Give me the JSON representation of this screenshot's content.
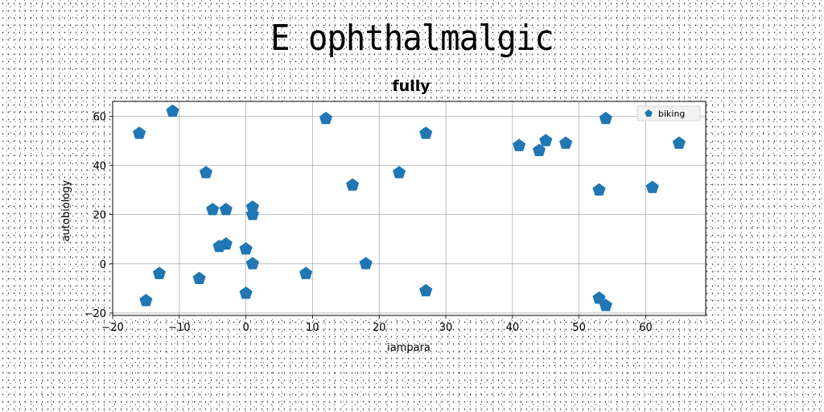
{
  "title": "E ophthalmalgic",
  "chart_data": {
    "type": "scatter",
    "title": "fully",
    "xlabel": "iampara",
    "ylabel": "autobiology",
    "xlim": [
      -20,
      69
    ],
    "ylim": [
      -21,
      66
    ],
    "xticks": [
      -20,
      -10,
      0,
      10,
      20,
      30,
      40,
      50,
      60
    ],
    "yticks": [
      -20,
      0,
      20,
      40,
      60
    ],
    "grid": true,
    "legend_position": "top-right",
    "series": [
      {
        "name": "biking",
        "color": "#1f77b4",
        "marker": "pentagon",
        "points": [
          [
            -16,
            53
          ],
          [
            -11,
            62
          ],
          [
            -13,
            -4
          ],
          [
            -15,
            -15
          ],
          [
            -7,
            -6
          ],
          [
            -6,
            37
          ],
          [
            -5,
            22
          ],
          [
            -3,
            22
          ],
          [
            -4,
            7
          ],
          [
            -3,
            8
          ],
          [
            0,
            6
          ],
          [
            1,
            23
          ],
          [
            1,
            20
          ],
          [
            1,
            0
          ],
          [
            0,
            -12
          ],
          [
            9,
            -4
          ],
          [
            12,
            59
          ],
          [
            16,
            32
          ],
          [
            18,
            0
          ],
          [
            23,
            37
          ],
          [
            27,
            53
          ],
          [
            27,
            -11
          ],
          [
            41,
            48
          ],
          [
            44,
            46
          ],
          [
            45,
            50
          ],
          [
            48,
            49
          ],
          [
            53,
            30
          ],
          [
            54,
            59
          ],
          [
            53,
            -14
          ],
          [
            54,
            -17
          ],
          [
            61,
            31
          ],
          [
            65,
            49
          ]
        ]
      }
    ]
  }
}
